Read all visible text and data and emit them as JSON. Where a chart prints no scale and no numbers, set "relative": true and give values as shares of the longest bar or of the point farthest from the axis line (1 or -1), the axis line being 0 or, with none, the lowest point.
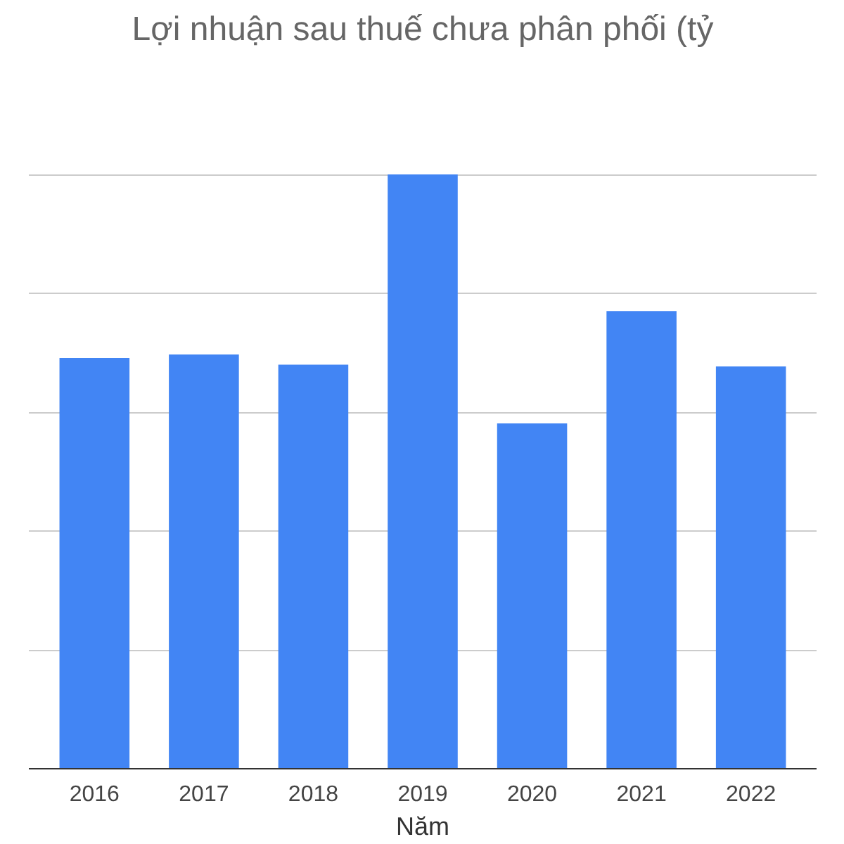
{
  "chart_data": {
    "type": "bar",
    "title": "Lợi nhuận sau thuế chưa phân phối (tỷ",
    "xlabel": "Năm",
    "categories": [
      "2016",
      "2017",
      "2018",
      "2019",
      "2020",
      "2021",
      "2022"
    ],
    "values": [
      0.691,
      0.697,
      0.68,
      1,
      0.581,
      0.77,
      0.677
    ],
    "color": "#4285f4",
    "relative": true,
    "grid": "y"
  }
}
